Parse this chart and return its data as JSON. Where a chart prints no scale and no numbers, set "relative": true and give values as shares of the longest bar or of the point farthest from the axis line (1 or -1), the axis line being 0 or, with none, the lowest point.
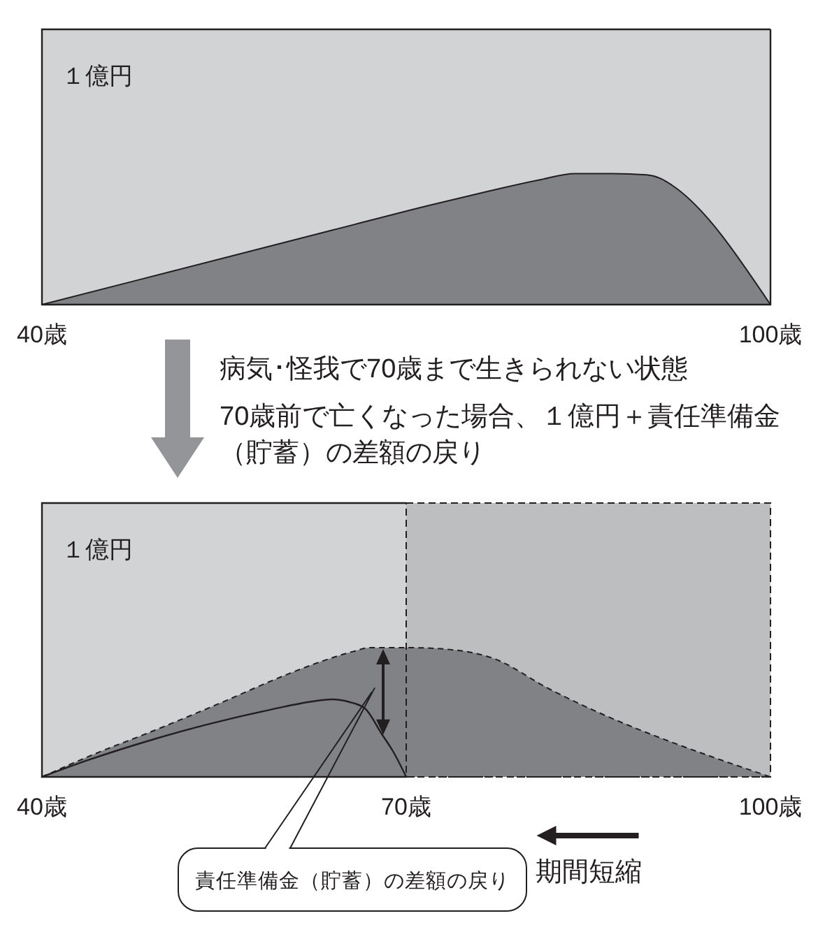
{
  "chart_data": [
    {
      "type": "area",
      "relative": true,
      "x": [
        40,
        48,
        56,
        64,
        72,
        77,
        80.9,
        83.9,
        87,
        89.8,
        91,
        91.9,
        100
      ],
      "values": [
        0,
        0.19,
        0.38,
        0.57,
        0.76,
        0.87,
        0.95,
        1,
        1,
        0.99,
        0.96,
        0.91,
        0
      ],
      "color": "#808285",
      "xlim": [
        40,
        100
      ],
      "xticks": [
        {
          "value": 40,
          "label": "40歳"
        },
        {
          "value": 100,
          "label": "100歳"
        }
      ],
      "annotations": [
        "１億円"
      ]
    },
    {
      "type": "area",
      "relative": true,
      "title": "病気･怪我で70歳まで生きられない状態",
      "subtitle": "70歳前で亡くなった場合、１億円＋責任準備金（貯蓄）の差額の戻り",
      "series": [
        {
          "type": "area",
          "color": "#808285",
          "line_style": "dashed",
          "x": [
            40,
            44.4,
            49,
            54.4,
            60.1,
            63.2,
            65.6,
            67,
            70.5,
            74.2,
            77.1,
            81.8,
            100
          ],
          "values": [
            0,
            0.18,
            0.35,
            0.56,
            0.79,
            0.9,
            0.97,
            1,
            1,
            0.98,
            0.92,
            0.68,
            0
          ]
        },
        {
          "type": "line",
          "color": "#231f20",
          "x": [
            40,
            43.8,
            48.8,
            53.8,
            58.8,
            62,
            63.9,
            65.3,
            66.6,
            68,
            68.9,
            70
          ],
          "values": [
            0,
            0.13,
            0.28,
            0.41,
            0.52,
            0.58,
            0.6,
            0.58,
            0.53,
            0.33,
            0.2,
            0
          ]
        }
      ],
      "xlim": [
        40,
        100
      ],
      "xticks": [
        {
          "value": 40,
          "label": "40歳"
        },
        {
          "value": 70,
          "label": "70歳"
        },
        {
          "value": 100,
          "label": "100歳"
        }
      ],
      "bands": [
        {
          "axis": "x",
          "from": 70,
          "to": 100,
          "color": "#bcbec0"
        }
      ],
      "annotations": [
        "１億円",
        "責任準備金（貯蓄）の差額の戻り",
        "期間短縮"
      ]
    }
  ]
}
